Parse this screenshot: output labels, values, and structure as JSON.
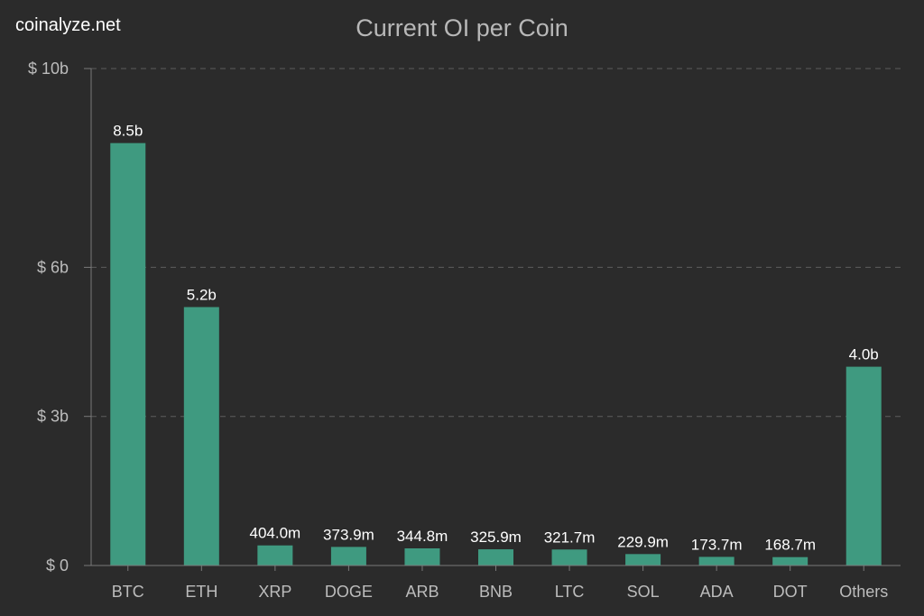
{
  "watermark": "coinalyze.net",
  "chart_data": {
    "type": "bar",
    "title": "Current OI per Coin",
    "xlabel": "",
    "ylabel": "",
    "y_unit": "billion USD",
    "ylim": [
      0,
      10
    ],
    "yticks": [
      {
        "value": 0,
        "label": "$ 0"
      },
      {
        "value": 3,
        "label": "$ 3b"
      },
      {
        "value": 6,
        "label": "$ 6b"
      },
      {
        "value": 10,
        "label": "$ 10b"
      }
    ],
    "grid": true,
    "legend": "none",
    "bar_color": "#3f9a80",
    "categories": [
      "BTC",
      "ETH",
      "XRP",
      "DOGE",
      "ARB",
      "BNB",
      "LTC",
      "SOL",
      "ADA",
      "DOT",
      "Others"
    ],
    "values": [
      8.5,
      5.2,
      0.404,
      0.3739,
      0.3448,
      0.3259,
      0.3217,
      0.2299,
      0.1737,
      0.1687,
      4.0
    ],
    "data_labels": [
      "8.5b",
      "5.2b",
      "404.0m",
      "373.9m",
      "344.8m",
      "325.9m",
      "321.7m",
      "229.9m",
      "173.7m",
      "168.7m",
      "4.0b"
    ]
  }
}
